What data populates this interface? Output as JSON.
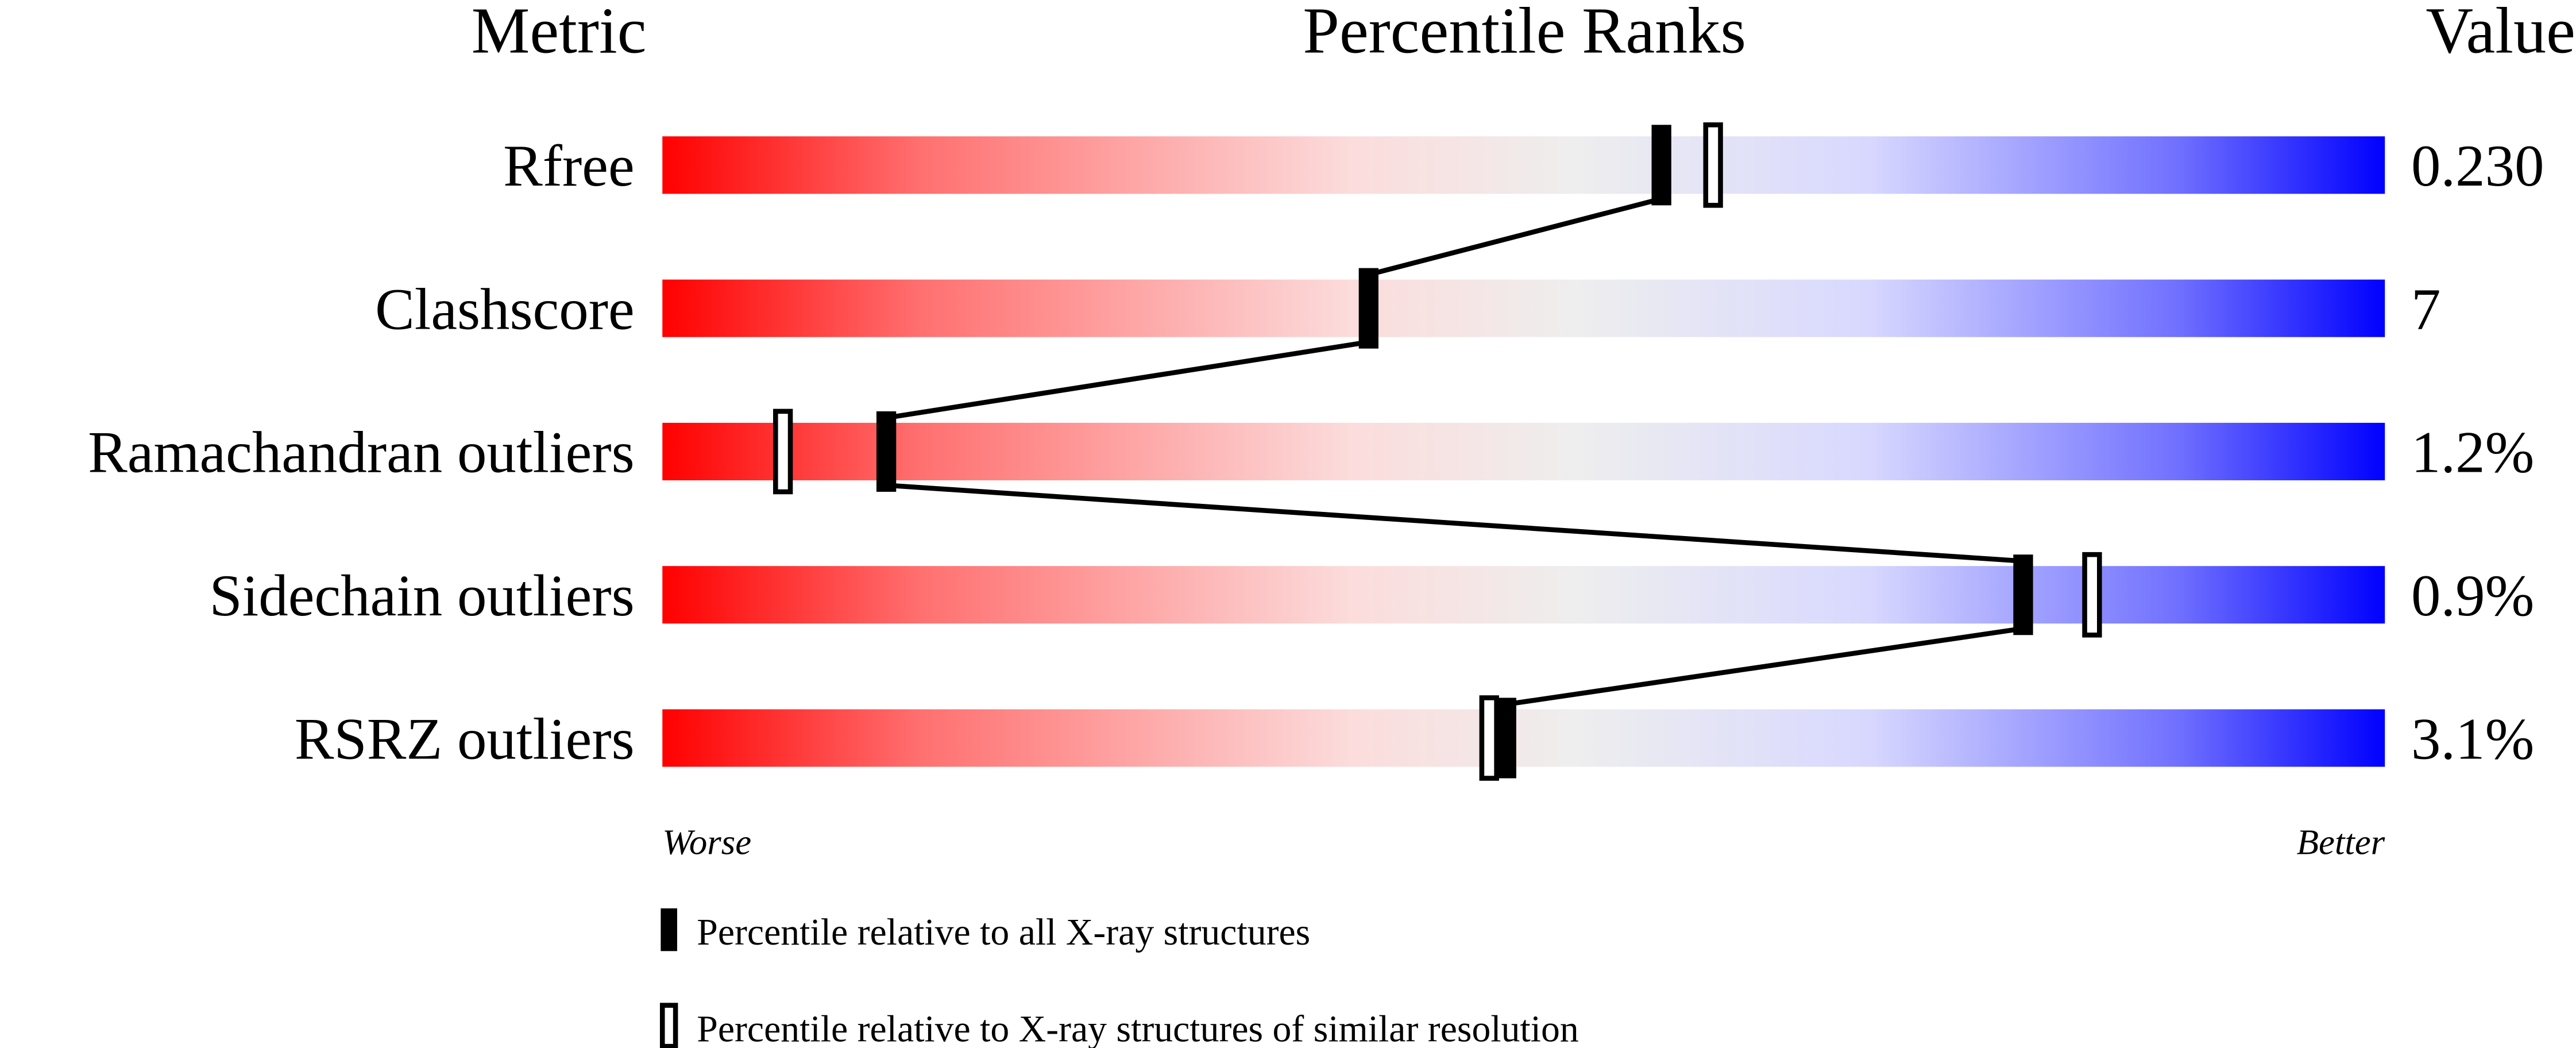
{
  "chart_data": {
    "type": "percentile-slider",
    "headers": {
      "metric": "Metric",
      "ranks": "Percentile Ranks",
      "value": "Value"
    },
    "xlim": [
      0,
      100
    ],
    "axis": {
      "left": "Worse",
      "right": "Better"
    },
    "gradient_colors": [
      "#ff0000",
      "#ff7070",
      "#fcdcdc",
      "#eeeeee",
      "#d8d8ff",
      "#7070ff",
      "#0000ff"
    ],
    "rows": [
      {
        "metric": "Rfree",
        "value": "0.230",
        "percentile_all": 58,
        "percentile_similar": 61
      },
      {
        "metric": "Clashscore",
        "value": "7",
        "percentile_all": 41,
        "percentile_similar": null
      },
      {
        "metric": "Ramachandran outliers",
        "value": "1.2%",
        "percentile_all": 13,
        "percentile_similar": 7
      },
      {
        "metric": "Sidechain outliers",
        "value": "0.9%",
        "percentile_all": 79,
        "percentile_similar": 83
      },
      {
        "metric": "RSRZ outliers",
        "value": "3.1%",
        "percentile_all": 49,
        "percentile_similar": 48
      }
    ],
    "legend": [
      {
        "marker": "filled",
        "label": "Percentile relative to all X-ray structures"
      },
      {
        "marker": "open",
        "label": "Percentile relative to X-ray structures of similar resolution"
      }
    ]
  }
}
